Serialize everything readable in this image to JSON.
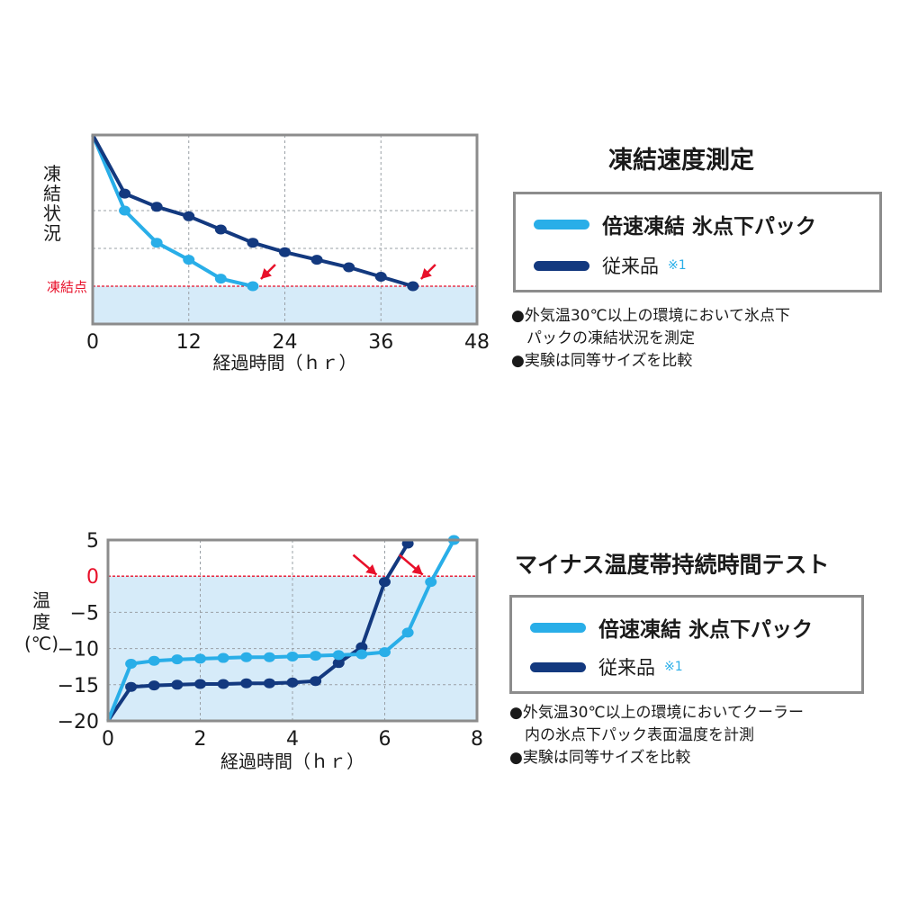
{
  "colors": {
    "fast": "#29aee8",
    "conventional": "#13397f",
    "freeze_line": "#e8102a",
    "frozen_zone": "#d6ebf9",
    "grid": "#9aa0a6",
    "frame": "#8c8c8c"
  },
  "charts": [
    {
      "title": "凍結速度測定",
      "legend": {
        "fast": "倍速凍結 氷点下パック",
        "conventional": "従来品",
        "conventional_ref": "※1"
      },
      "notes": [
        "●外気温30℃以上の環境において氷点下",
        "　パックの凍結状況を測定",
        "●実験は同等サイズを比較"
      ]
    },
    {
      "title": "マイナス温度帯持続時間テスト",
      "legend": {
        "fast": "倍速凍結 氷点下パック",
        "conventional": "従来品",
        "conventional_ref": "※1"
      },
      "notes": [
        "●外気温30℃以上の環境においてクーラー",
        "　内の氷点下パック表面温度を計測",
        "●実験は同等サイズを比較"
      ]
    }
  ],
  "chart_data": [
    {
      "type": "line",
      "xlabel": "経過時間（ｈｒ）",
      "ylabel": "凍結状況",
      "xlim": [
        0,
        48
      ],
      "ylim": [
        0,
        1
      ],
      "xticks": [
        "0",
        "12",
        "24",
        "36",
        "48"
      ],
      "reference_line": {
        "label": "凍結点",
        "y": 0.2
      },
      "series": [
        {
          "name": "倍速凍結 氷点下パック",
          "key": "fast",
          "x": [
            0,
            4,
            8,
            12,
            16,
            20
          ],
          "y": [
            1.0,
            0.6,
            0.43,
            0.34,
            0.24,
            0.2
          ]
        },
        {
          "name": "従来品",
          "key": "conventional",
          "x": [
            0,
            4,
            8,
            12,
            16,
            20,
            24,
            28,
            32,
            36,
            40
          ],
          "y": [
            1.0,
            0.69,
            0.62,
            0.57,
            0.5,
            0.43,
            0.38,
            0.34,
            0.3,
            0.25,
            0.2
          ]
        }
      ],
      "arrows_at": [
        {
          "series": "fast",
          "x": 20
        },
        {
          "series": "conventional",
          "x": 40
        }
      ],
      "grid": true
    },
    {
      "type": "line",
      "xlabel": "経過時間（ｈｒ）",
      "ylabel": "温度（℃）",
      "xlim": [
        0,
        8
      ],
      "ylim": [
        -20,
        5
      ],
      "xticks": [
        "0",
        "2",
        "4",
        "6",
        "8"
      ],
      "yticks": [
        "5",
        "0",
        "−5",
        "−10",
        "−15",
        "−20"
      ],
      "yvalues": [
        5,
        0,
        -5,
        -10,
        -15,
        -20
      ],
      "reference_line": {
        "label": "0",
        "y": 0
      },
      "series": [
        {
          "name": "倍速凍結 氷点下パック",
          "key": "fast",
          "x": [
            0,
            0.5,
            1.0,
            1.5,
            2.0,
            2.5,
            3.0,
            3.5,
            4.0,
            4.5,
            5.0,
            5.5,
            6.0,
            6.5,
            7.0,
            7.5
          ],
          "y": [
            -20,
            -12.1,
            -11.7,
            -11.5,
            -11.4,
            -11.3,
            -11.2,
            -11.2,
            -11.1,
            -11.0,
            -10.9,
            -10.8,
            -10.5,
            -7.8,
            -0.8,
            5.0
          ]
        },
        {
          "name": "従来品",
          "key": "conventional",
          "x": [
            0,
            0.5,
            1.0,
            1.5,
            2.0,
            2.5,
            3.0,
            3.5,
            4.0,
            4.5,
            5.0,
            5.5,
            6.0,
            6.5
          ],
          "y": [
            -20,
            -15.3,
            -15.1,
            -15.0,
            -14.9,
            -14.9,
            -14.8,
            -14.8,
            -14.7,
            -14.5,
            -12.0,
            -9.8,
            -0.8,
            4.5
          ]
        }
      ],
      "arrows_at": [
        {
          "series": "conventional",
          "x": 6.0
        },
        {
          "series": "fast",
          "x": 7.0
        }
      ],
      "grid": true
    }
  ]
}
